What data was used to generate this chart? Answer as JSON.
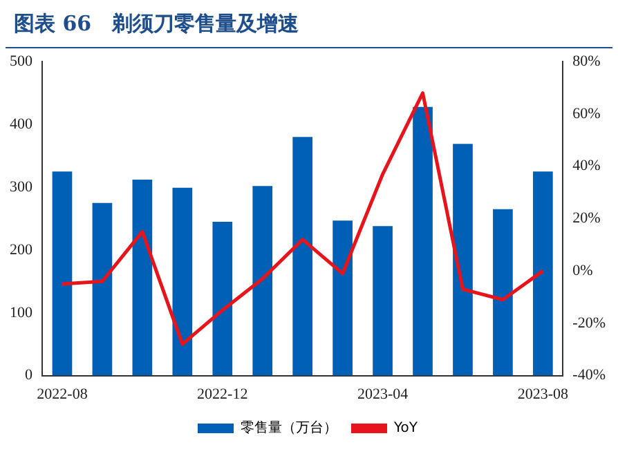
{
  "chart_data": {
    "type": "bar",
    "title": "图表 66　剃须刀零售量及增速",
    "categories": [
      "2022-08",
      null,
      null,
      null,
      "2022-12",
      null,
      null,
      null,
      "2023-04",
      null,
      null,
      null,
      "2023-08"
    ],
    "series": [
      {
        "name": "零售量（万台）",
        "color": "#0060b6",
        "values": [
          325,
          275,
          312,
          299,
          245,
          302,
          380,
          247,
          238,
          428,
          369,
          265,
          325
        ]
      },
      {
        "name": "YoY",
        "type": "line",
        "axis": "y2",
        "color": "#e8141c",
        "values": [
          -5,
          -4,
          15,
          -28,
          -15,
          -3,
          12,
          -1,
          37,
          68,
          -7,
          -11,
          0
        ]
      }
    ],
    "ylim": [
      0,
      500
    ],
    "yticks": [
      0,
      100,
      200,
      300,
      400,
      500
    ],
    "y2lim": [
      -40,
      80
    ],
    "y2ticks": [
      {
        "value": -40,
        "label": "-40%"
      },
      {
        "value": -20,
        "label": "-20%"
      },
      {
        "value": 0,
        "label": "0%"
      },
      {
        "value": 20,
        "label": "20%"
      },
      {
        "value": 40,
        "label": "40%"
      },
      {
        "value": 60,
        "label": "60%"
      },
      {
        "value": 80,
        "label": "80%"
      }
    ],
    "grid": false,
    "legend": "bottom",
    "marker": "none"
  }
}
